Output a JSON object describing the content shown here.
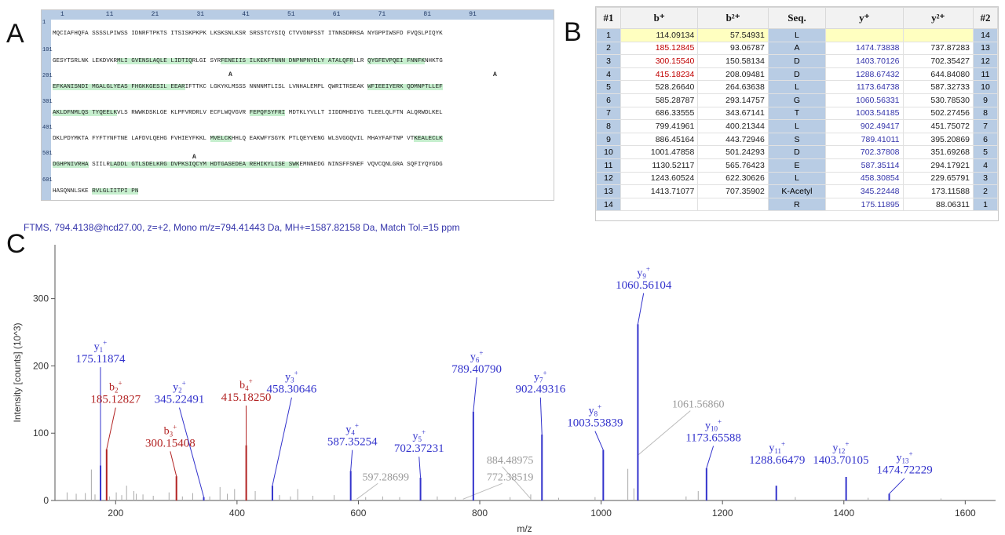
{
  "panel_letters": {
    "a": "A",
    "b": "B",
    "c": "C"
  },
  "panel_a": {
    "ruler": [
      "1",
      "11",
      "21",
      "31",
      "41",
      "51",
      "61",
      "71",
      "81",
      "91"
    ],
    "row_numbers": [
      "1",
      "101",
      "201",
      "301",
      "401",
      "501",
      "601"
    ],
    "acetyl_mark": "A",
    "lines": [
      [
        {
          "t": "MQCIAFHQFA SSSSLPIWSS IDNRFTPKTS ITSISKPKPK LKSKSNLKSR SRSSTCYSIQ CTVVDNPSST ITNNSDRRSA NYGPPIWSFD FVQSLPIQYK",
          "h": false
        }
      ],
      [
        {
          "t": "GESYTSRLNK LEKDVKR",
          "h": false
        },
        {
          "t": "MLI GVENSLAQLE LIDTIQ",
          "h": true
        },
        {
          "t": "RLGI SYR",
          "h": false
        },
        {
          "t": "FENEIIS ILKEKFTNNN DNPNPNYDLY ATALQFR",
          "h": true
        },
        {
          "t": "LLR ",
          "h": false
        },
        {
          "t": "QYGFEVPQEI FNNFK",
          "h": true
        },
        {
          "t": "NHKTG",
          "h": false
        }
      ],
      [
        {
          "t": "EFKANISNDI MGALGLYEAS FHGKKGESIL EEAR",
          "h": true
        },
        {
          "t": "IFTTKC LGKYKLMSSS NNNNMTLISL LVNHALEMPL QWRITRSEAK ",
          "h": false
        },
        {
          "t": "WFIEEIYERK QDMNPTLLEF",
          "h": true
        }
      ],
      [
        {
          "t": "AKLDFNMLQS TYQEELK",
          "h": true
        },
        {
          "t": "VLS RWWKDSKLGE KLPFVRDRLV ECFLWQVGVR ",
          "h": false
        },
        {
          "t": "FEPQFSYFRI",
          "h": true
        },
        {
          "t": " MDTKLYVLLT IIDDMHDIYG TLEELQLFTN ALQRWDLKEL",
          "h": false
        }
      ],
      [
        {
          "t": "DKLPDYMKTA FYFTYNFTNE LAFDVLQEHG FVHIEYFKKL ",
          "h": false
        },
        {
          "t": "MVELCK",
          "h": true
        },
        {
          "t": "HHLQ EAKWFYSGYK PTLQEYVENG WLSVGGQVIL MHAYFAFTNP VT",
          "h": false
        },
        {
          "t": "KEALECLK",
          "h": true
        }
      ],
      [
        {
          "t": "DGHPNIVRHA",
          "h": true
        },
        {
          "t": " SIILR",
          "h": false
        },
        {
          "t": "LADDL GTLSDELKRG DVPKSIQCYM HDTGASEDEA REHIKYLISE SWK",
          "h": true
        },
        {
          "t": "EMNNEDG NINSFFSNEF VQVCQNLGRA SQFIYQYGDG",
          "h": false
        }
      ],
      [
        {
          "t": "HASQNNLSKE ",
          "h": false
        },
        {
          "t": "RVLGLIITPI PN",
          "h": true
        }
      ]
    ]
  },
  "panel_b": {
    "headers": [
      "#1",
      "b⁺",
      "b²⁺",
      "Seq.",
      "y⁺",
      "y²⁺",
      "#2"
    ],
    "rows": [
      [
        "1",
        "114.09134",
        "57.54931",
        "L",
        "",
        "",
        "14"
      ],
      [
        "2",
        "185.12845",
        "93.06787",
        "A",
        "1474.73838",
        "737.87283",
        "13"
      ],
      [
        "3",
        "300.15540",
        "150.58134",
        "D",
        "1403.70126",
        "702.35427",
        "12"
      ],
      [
        "4",
        "415.18234",
        "208.09481",
        "D",
        "1288.67432",
        "644.84080",
        "11"
      ],
      [
        "5",
        "528.26640",
        "264.63638",
        "L",
        "1173.64738",
        "587.32733",
        "10"
      ],
      [
        "6",
        "585.28787",
        "293.14757",
        "G",
        "1060.56331",
        "530.78530",
        "9"
      ],
      [
        "7",
        "686.33555",
        "343.67141",
        "T",
        "1003.54185",
        "502.27456",
        "8"
      ],
      [
        "8",
        "799.41961",
        "400.21344",
        "L",
        "902.49417",
        "451.75072",
        "7"
      ],
      [
        "9",
        "886.45164",
        "443.72946",
        "S",
        "789.41011",
        "395.20869",
        "6"
      ],
      [
        "10",
        "1001.47858",
        "501.24293",
        "D",
        "702.37808",
        "351.69268",
        "5"
      ],
      [
        "11",
        "1130.52117",
        "565.76423",
        "E",
        "587.35114",
        "294.17921",
        "4"
      ],
      [
        "12",
        "1243.60524",
        "622.30626",
        "L",
        "458.30854",
        "229.65791",
        "3"
      ],
      [
        "13",
        "1413.71077",
        "707.35902",
        "K-Acetyl",
        "345.22448",
        "173.11588",
        "2"
      ],
      [
        "14",
        "",
        "",
        "R",
        "175.11895",
        "88.06311",
        "1"
      ]
    ],
    "red_b_rows": [
      1,
      2,
      3
    ],
    "colors": {
      "blue": "#3333aa",
      "red": "#c00000",
      "seq_bg": "#b8cce4",
      "first_row_bg": "#ffffc0"
    }
  },
  "panel_c": {
    "header": "FTMS, 794.4138@hcd27.00, z=+2, Mono m/z=794.41443 Da, MH+=1587.82158 Da, Match Tol.=15 ppm"
  },
  "chart_data": {
    "type": "bar",
    "xlabel": "m/z",
    "ylabel": "Intensity [counts] (10^3)",
    "xlim": [
      100,
      1650
    ],
    "ylim": [
      0,
      380
    ],
    "xticks": [
      200,
      400,
      600,
      800,
      1000,
      1200,
      1400,
      1600
    ],
    "yticks": [
      0,
      100,
      200,
      300
    ],
    "colors": {
      "y": "#3333cc",
      "b": "#b22222",
      "unassigned": "#aaaaaa",
      "label_grey": "#999999"
    },
    "peaks": [
      {
        "ion": "y",
        "n": "1",
        "mz": 175.11874,
        "intensity": 52,
        "label": "175.11874",
        "lx": 175,
        "ly": 205
      },
      {
        "ion": "b",
        "n": "2",
        "mz": 185.12827,
        "intensity": 76,
        "label": "185.12827",
        "lx": 200,
        "ly": 145
      },
      {
        "ion": "b",
        "n": "3",
        "mz": 300.15408,
        "intensity": 36,
        "label": "300.15408",
        "lx": 290,
        "ly": 80
      },
      {
        "ion": "y",
        "n": "2",
        "mz": 345.22491,
        "intensity": 5,
        "label": "345.22491",
        "lx": 305,
        "ly": 145
      },
      {
        "ion": "b",
        "n": "4",
        "mz": 415.1825,
        "intensity": 82,
        "label": "415.18250",
        "lx": 415,
        "ly": 148
      },
      {
        "ion": "y",
        "n": "3",
        "mz": 458.30646,
        "intensity": 22,
        "label": "458.30646",
        "lx": 490,
        "ly": 160
      },
      {
        "ion": "y",
        "n": "4",
        "mz": 587.35254,
        "intensity": 44,
        "label": "587.35254",
        "lx": 590,
        "ly": 82
      },
      {
        "ion": "y",
        "n": "5",
        "mz": 702.37231,
        "intensity": 34,
        "label": "702.37231",
        "lx": 700,
        "ly": 72
      },
      {
        "ion": "y",
        "n": "6",
        "mz": 789.4079,
        "intensity": 132,
        "label": "789.40790",
        "lx": 795,
        "ly": 190
      },
      {
        "ion": "y",
        "n": "7",
        "mz": 902.49316,
        "intensity": 98,
        "label": "902.49316",
        "lx": 900,
        "ly": 160
      },
      {
        "ion": "y",
        "n": "8",
        "mz": 1003.53839,
        "intensity": 75,
        "label": "1003.53839",
        "lx": 990,
        "ly": 110
      },
      {
        "ion": "y",
        "n": "9",
        "mz": 1060.56104,
        "intensity": 262,
        "label": "1060.56104",
        "lx": 1070,
        "ly": 315
      },
      {
        "ion": "y",
        "n": "10",
        "mz": 1173.65588,
        "intensity": 48,
        "label": "1173.65588",
        "lx": 1185,
        "ly": 88
      },
      {
        "ion": "y",
        "n": "11",
        "mz": 1288.66479,
        "intensity": 22,
        "label": "1288.66479",
        "lx": 1290,
        "ly": 55
      },
      {
        "ion": "y",
        "n": "12",
        "mz": 1403.70105,
        "intensity": 35,
        "label": "1403.70105",
        "lx": 1395,
        "ly": 55
      },
      {
        "ion": "y",
        "n": "13",
        "mz": 1474.72229,
        "intensity": 10,
        "label": "1474.72229",
        "lx": 1500,
        "ly": 40
      }
    ],
    "grey_labels": [
      {
        "mz": 597.28699,
        "label": "597.28699",
        "lx": 645,
        "ly": 30,
        "line_to": 2
      },
      {
        "mz": 884.48975,
        "label": "884.48975",
        "lx": 850,
        "ly": 55,
        "line_to": 2
      },
      {
        "mz": 772.38519,
        "label": "772.38519",
        "lx": 850,
        "ly": 30,
        "line_to": 2
      },
      {
        "mz": 1061.5686,
        "label": "1061.56860",
        "lx": 1160,
        "ly": 138,
        "line_to": 68
      }
    ],
    "minor_peaks": [
      [
        120,
        12
      ],
      [
        135,
        10
      ],
      [
        150,
        11
      ],
      [
        160,
        46
      ],
      [
        166,
        9
      ],
      [
        190,
        6
      ],
      [
        201,
        12
      ],
      [
        210,
        8
      ],
      [
        218,
        22
      ],
      [
        230,
        14
      ],
      [
        234,
        10
      ],
      [
        245,
        9
      ],
      [
        262,
        7
      ],
      [
        288,
        12
      ],
      [
        310,
        6
      ],
      [
        327,
        11
      ],
      [
        355,
        6
      ],
      [
        372,
        20
      ],
      [
        384,
        10
      ],
      [
        396,
        17
      ],
      [
        430,
        14
      ],
      [
        470,
        8
      ],
      [
        488,
        6
      ],
      [
        500,
        17
      ],
      [
        525,
        7
      ],
      [
        560,
        8
      ],
      [
        612,
        5
      ],
      [
        640,
        6
      ],
      [
        668,
        5
      ],
      [
        730,
        6
      ],
      [
        760,
        5
      ],
      [
        850,
        5
      ],
      [
        884,
        9
      ],
      [
        930,
        4
      ],
      [
        990,
        5
      ],
      [
        1044,
        47
      ],
      [
        1054,
        18
      ],
      [
        1140,
        6
      ],
      [
        1160,
        14
      ],
      [
        1320,
        5
      ],
      [
        1440,
        4
      ],
      [
        1560,
        3
      ]
    ]
  }
}
